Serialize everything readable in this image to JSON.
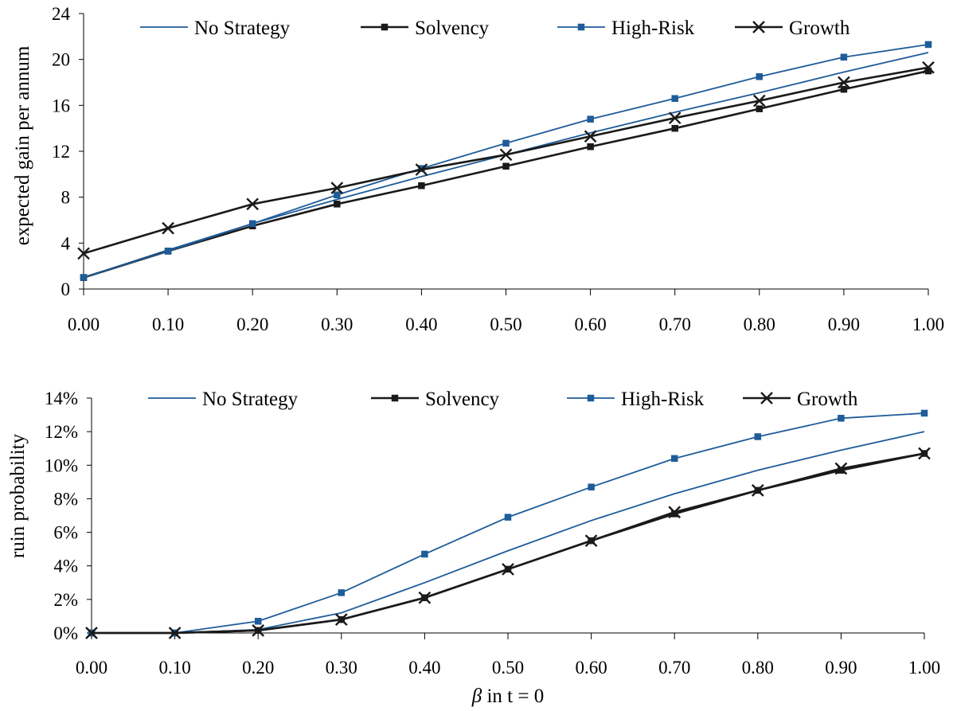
{
  "chart_data": [
    {
      "type": "line",
      "ylabel": "expected gain per annum",
      "xlabel": "",
      "x": [
        0.0,
        0.1,
        0.2,
        0.3,
        0.4,
        0.5,
        0.6,
        0.7,
        0.8,
        0.9,
        1.0
      ],
      "x_tick_labels": [
        "0.00",
        "0.10",
        "0.20",
        "0.30",
        "0.40",
        "0.50",
        "0.60",
        "0.70",
        "0.80",
        "0.90",
        "1.00"
      ],
      "ylim": [
        0,
        24
      ],
      "y_ticks": [
        0,
        4,
        8,
        12,
        16,
        20,
        24
      ],
      "y_tick_labels": [
        "0",
        "4",
        "8",
        "12",
        "16",
        "20",
        "24"
      ],
      "grid": false,
      "legend_position": "top",
      "series": [
        {
          "name": "No Strategy",
          "color": "#1f5c99",
          "marker": "none",
          "values": [
            1.0,
            3.4,
            5.7,
            7.8,
            9.8,
            11.7,
            13.6,
            15.4,
            17.1,
            18.9,
            20.6
          ]
        },
        {
          "name": "Solvency",
          "color": "#1a1a1a",
          "marker": "square",
          "values": [
            1.0,
            3.3,
            5.5,
            7.4,
            9.0,
            10.7,
            12.4,
            14.0,
            15.7,
            17.4,
            19.0
          ]
        },
        {
          "name": "High-Risk",
          "color": "#1f5c99",
          "marker": "square",
          "values": [
            1.0,
            3.3,
            5.7,
            8.2,
            10.5,
            12.7,
            14.8,
            16.6,
            18.5,
            20.2,
            21.3
          ]
        },
        {
          "name": "Growth",
          "color": "#1a1a1a",
          "marker": "x",
          "values": [
            3.1,
            5.3,
            7.4,
            8.8,
            10.4,
            11.7,
            13.3,
            14.9,
            16.4,
            18.0,
            19.3
          ]
        }
      ]
    },
    {
      "type": "line",
      "ylabel": "ruin probability",
      "xlabel_prefix": "β",
      "xlabel_suffix": " in t = 0",
      "x": [
        0.0,
        0.1,
        0.2,
        0.3,
        0.4,
        0.5,
        0.6,
        0.7,
        0.8,
        0.9,
        1.0
      ],
      "x_tick_labels": [
        "0.00",
        "0.10",
        "0.20",
        "0.30",
        "0.40",
        "0.50",
        "0.60",
        "0.70",
        "0.80",
        "0.90",
        "1.00"
      ],
      "ylim": [
        0,
        14
      ],
      "y_ticks": [
        0,
        2,
        4,
        6,
        8,
        10,
        12,
        14
      ],
      "y_tick_labels": [
        "0%",
        "2%",
        "4%",
        "6%",
        "8%",
        "10%",
        "12%",
        "14%"
      ],
      "grid": false,
      "legend_position": "top",
      "series": [
        {
          "name": "No Strategy",
          "color": "#1f5c99",
          "marker": "none",
          "values": [
            0.0,
            0.0,
            0.2,
            1.2,
            3.0,
            4.9,
            6.7,
            8.3,
            9.7,
            10.9,
            12.0
          ]
        },
        {
          "name": "Solvency",
          "color": "#1a1a1a",
          "marker": "square",
          "values": [
            0.0,
            0.0,
            0.15,
            0.8,
            2.1,
            3.8,
            5.5,
            7.1,
            8.5,
            9.7,
            10.7
          ]
        },
        {
          "name": "High-Risk",
          "color": "#1f5c99",
          "marker": "square",
          "values": [
            0.0,
            0.0,
            0.7,
            2.4,
            4.7,
            6.9,
            8.7,
            10.4,
            11.7,
            12.8,
            13.1
          ]
        },
        {
          "name": "Growth",
          "color": "#1a1a1a",
          "marker": "x",
          "values": [
            0.0,
            0.0,
            0.15,
            0.8,
            2.1,
            3.8,
            5.5,
            7.2,
            8.5,
            9.8,
            10.7
          ]
        }
      ]
    }
  ]
}
